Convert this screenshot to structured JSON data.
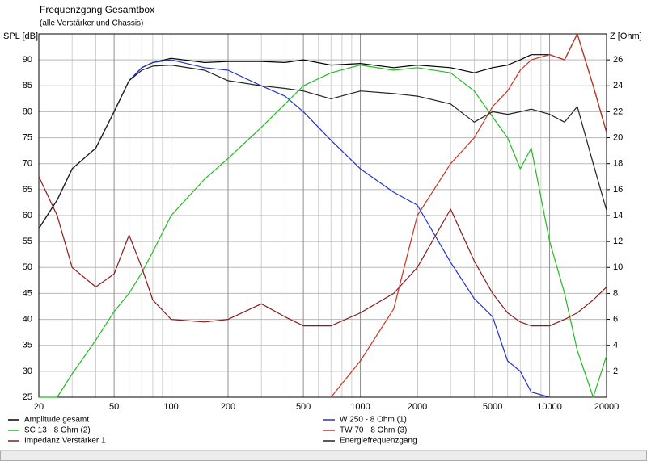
{
  "chart_data": {
    "type": "line",
    "title": "Frequenzgang Gesamtbox",
    "subtitle": "(alle Verstärker und Chassis)",
    "ylabel": "SPL [dB]",
    "y2label": "Z [Ohm]",
    "xscale": "log",
    "grid": true,
    "xlim": [
      20,
      20000
    ],
    "xticks": [
      20,
      50,
      100,
      200,
      500,
      1000,
      2000,
      5000,
      10000,
      20000
    ],
    "xgrid_minor": [
      30,
      40,
      60,
      70,
      80,
      90,
      300,
      400,
      600,
      700,
      800,
      900,
      3000,
      4000,
      6000,
      7000,
      8000,
      9000
    ],
    "ylim": [
      25,
      95
    ],
    "yticks": [
      25,
      30,
      35,
      40,
      45,
      50,
      55,
      60,
      65,
      70,
      75,
      80,
      85,
      90
    ],
    "y2lim": [
      0,
      28
    ],
    "y2ticks": [
      2,
      4,
      6,
      8,
      10,
      12,
      14,
      16,
      18,
      20,
      22,
      24,
      26
    ],
    "x": [
      20,
      25,
      30,
      40,
      50,
      60,
      70,
      80,
      100,
      150,
      200,
      300,
      400,
      500,
      700,
      1000,
      1500,
      2000,
      3000,
      4000,
      5000,
      6000,
      7000,
      8000,
      10000,
      12000,
      14000,
      17000,
      20000
    ],
    "series": [
      {
        "name": "Amplitude gesamt",
        "color": "#000000",
        "values": [
          57.5,
          63,
          69,
          73,
          80,
          86,
          88.5,
          89.5,
          90.3,
          89.5,
          89.7,
          89.7,
          89.5,
          90,
          89,
          89.3,
          88.5,
          89,
          88.5,
          87.5,
          88.5,
          89,
          90,
          91,
          91,
          90,
          95,
          85,
          76
        ]
      },
      {
        "name": "SC 13 - 8 Ohm (2)",
        "color": "#22bb22",
        "values": [
          25,
          25,
          29.5,
          36,
          41.5,
          45,
          49,
          53,
          60,
          67,
          71,
          77,
          81.5,
          85,
          87.5,
          89,
          88,
          88.5,
          87.5,
          84,
          79,
          75,
          69,
          73,
          55,
          45,
          34,
          25,
          33
        ]
      },
      {
        "name": "Impedanz Verstärker 1",
        "color": "#8b1a1a",
        "axis": "y2",
        "values": [
          17,
          14,
          10,
          8.5,
          9.5,
          12.5,
          10,
          7.5,
          6,
          5.8,
          6,
          7.2,
          6.2,
          5.5,
          5.5,
          6.5,
          8,
          10,
          14.5,
          10.5,
          8,
          6.5,
          5.8,
          5.5,
          5.5,
          6,
          6.5,
          7.5,
          8.5
        ]
      },
      {
        "name": "W 250 - 8 Ohm (1)",
        "color": "#2233cc",
        "values": [
          57.5,
          63,
          69,
          73,
          80,
          86,
          88.5,
          89.5,
          90,
          88.5,
          88,
          85,
          83,
          80,
          74.5,
          69,
          64.5,
          62,
          51,
          44,
          40.5,
          32,
          30,
          26,
          25,
          null,
          null,
          null,
          null
        ]
      },
      {
        "name": "TW 70 - 8 Ohm (3)",
        "color": "#cc3322",
        "values": [
          null,
          null,
          null,
          null,
          null,
          null,
          null,
          null,
          null,
          null,
          null,
          null,
          null,
          null,
          25,
          32,
          42,
          60,
          70,
          75,
          81,
          84,
          88,
          90,
          91,
          90,
          95,
          85,
          76
        ]
      },
      {
        "name": "Energiefrequenzgang",
        "color": "#222222",
        "values": [
          57.5,
          63,
          69,
          73,
          80,
          86,
          88,
          88.8,
          89,
          88,
          86,
          85,
          84.5,
          84,
          82.5,
          84,
          83.5,
          83,
          81.5,
          78,
          80,
          79.5,
          80,
          80.5,
          79.5,
          78,
          81,
          70,
          61
        ]
      }
    ]
  }
}
